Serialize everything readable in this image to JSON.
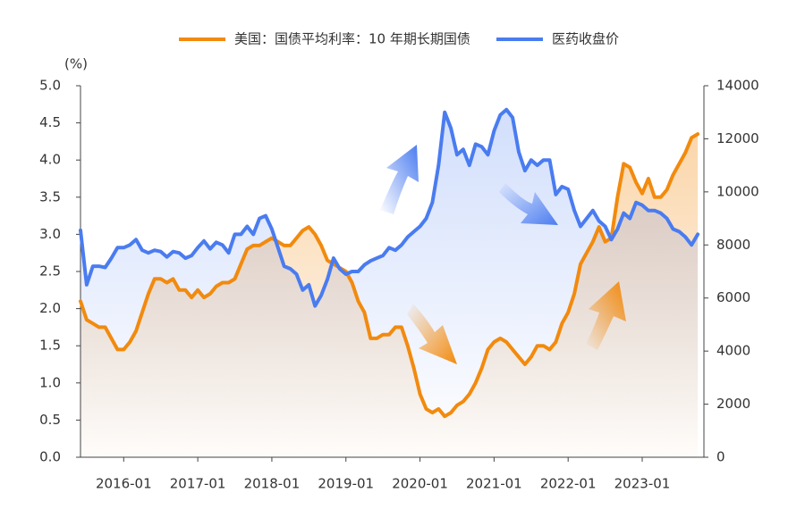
{
  "chart_data": {
    "type": "line",
    "y_label": "(%)",
    "x": [
      "2015-06",
      "2015-07",
      "2015-08",
      "2015-09",
      "2015-10",
      "2015-11",
      "2015-12",
      "2016-01",
      "2016-02",
      "2016-03",
      "2016-04",
      "2016-05",
      "2016-06",
      "2016-07",
      "2016-08",
      "2016-09",
      "2016-10",
      "2016-11",
      "2016-12",
      "2017-01",
      "2017-02",
      "2017-03",
      "2017-04",
      "2017-05",
      "2017-06",
      "2017-07",
      "2017-08",
      "2017-09",
      "2017-10",
      "2017-11",
      "2017-12",
      "2018-01",
      "2018-02",
      "2018-03",
      "2018-04",
      "2018-05",
      "2018-06",
      "2018-07",
      "2018-08",
      "2018-09",
      "2018-10",
      "2018-11",
      "2018-12",
      "2019-01",
      "2019-02",
      "2019-03",
      "2019-04",
      "2019-05",
      "2019-06",
      "2019-07",
      "2019-08",
      "2019-09",
      "2019-10",
      "2019-11",
      "2019-12",
      "2020-01",
      "2020-02",
      "2020-03",
      "2020-04",
      "2020-05",
      "2020-06",
      "2020-07",
      "2020-08",
      "2020-09",
      "2020-10",
      "2020-11",
      "2020-12",
      "2021-01",
      "2021-02",
      "2021-03",
      "2021-04",
      "2021-05",
      "2021-06",
      "2021-07",
      "2021-08",
      "2021-09",
      "2021-10",
      "2021-11",
      "2021-12",
      "2022-01",
      "2022-02",
      "2022-03",
      "2022-04",
      "2022-05",
      "2022-06",
      "2022-07",
      "2022-08",
      "2022-09",
      "2022-10",
      "2022-11",
      "2022-12",
      "2023-01",
      "2023-02",
      "2023-03",
      "2023-04",
      "2023-05",
      "2023-06",
      "2023-07",
      "2023-08",
      "2023-09",
      "2023-10"
    ],
    "xlim": [
      "2015-06",
      "2023-11"
    ],
    "xticks": [
      "2016-01",
      "2017-01",
      "2018-01",
      "2019-01",
      "2020-01",
      "2021-01",
      "2022-01",
      "2023-01"
    ],
    "ylim": [
      0,
      5
    ],
    "yticks": [
      {
        "value": 0,
        "label": "0.0"
      },
      {
        "value": 0.5,
        "label": "0.5"
      },
      {
        "value": 1,
        "label": "1.0"
      },
      {
        "value": 1.5,
        "label": "1.5"
      },
      {
        "value": 2,
        "label": "2.0"
      },
      {
        "value": 2.5,
        "label": "2.5"
      },
      {
        "value": 3,
        "label": "3.0"
      },
      {
        "value": 3.5,
        "label": "3.5"
      },
      {
        "value": 4,
        "label": "4.0"
      },
      {
        "value": 4.5,
        "label": "4.5"
      },
      {
        "value": 5,
        "label": "5.0"
      }
    ],
    "y2lim": [
      0,
      14000
    ],
    "y2ticks": [
      0,
      2000,
      4000,
      6000,
      8000,
      10000,
      12000,
      14000
    ],
    "legend": "top",
    "series": [
      {
        "name": "美国：国债平均利率：10 年期长期国债",
        "color": "#f28a0e",
        "values": [
          2.1,
          1.85,
          1.8,
          1.75,
          1.75,
          1.6,
          1.45,
          1.45,
          1.55,
          1.7,
          1.95,
          2.2,
          2.4,
          2.4,
          2.35,
          2.4,
          2.25,
          2.25,
          2.15,
          2.25,
          2.15,
          2.2,
          2.3,
          2.35,
          2.35,
          2.4,
          2.6,
          2.8,
          2.85,
          2.85,
          2.9,
          2.95,
          2.9,
          2.85,
          2.85,
          2.95,
          3.05,
          3.1,
          3.0,
          2.85,
          2.65,
          2.6,
          2.55,
          2.5,
          2.35,
          2.1,
          1.95,
          1.6,
          1.6,
          1.65,
          1.65,
          1.75,
          1.75,
          1.5,
          1.2,
          0.85,
          0.65,
          0.6,
          0.65,
          0.55,
          0.6,
          0.7,
          0.75,
          0.85,
          1.0,
          1.2,
          1.45,
          1.55,
          1.6,
          1.55,
          1.45,
          1.35,
          1.25,
          1.35,
          1.5,
          1.5,
          1.45,
          1.55,
          1.8,
          1.95,
          2.2,
          2.6,
          2.75,
          2.9,
          3.1,
          2.9,
          2.95,
          3.5,
          3.95,
          3.9,
          3.7,
          3.55,
          3.75,
          3.5,
          3.5,
          3.6,
          3.8,
          3.95,
          4.1,
          4.3,
          4.35
        ]
      },
      {
        "name": "医药收盘价",
        "color": "#4a7cf0",
        "axis": "y2",
        "values": [
          8550,
          6500,
          7200,
          7200,
          7150,
          7500,
          7900,
          7900,
          8000,
          8200,
          7800,
          7700,
          7800,
          7750,
          7550,
          7750,
          7700,
          7500,
          7600,
          7900,
          8150,
          7850,
          8100,
          8000,
          7700,
          8400,
          8400,
          8700,
          8400,
          9000,
          9100,
          8600,
          7900,
          7200,
          7100,
          6900,
          6300,
          6500,
          5700,
          6100,
          6700,
          7500,
          7100,
          6900,
          7000,
          7000,
          7250,
          7400,
          7500,
          7600,
          7900,
          7800,
          8000,
          8300,
          8500,
          8700,
          9000,
          9600,
          11000,
          13000,
          12400,
          11400,
          11600,
          11000,
          11800,
          11700,
          11400,
          12300,
          12900,
          13100,
          12800,
          11500,
          10800,
          11200,
          11000,
          11200,
          11200,
          9900,
          10200,
          10100,
          9300,
          8700,
          9000,
          9300,
          8900,
          8700,
          8200,
          8600,
          9200,
          9000,
          9600,
          9500,
          9300,
          9300,
          9200,
          9000,
          8600,
          8500,
          8300,
          8000,
          8400
        ]
      }
    ]
  }
}
